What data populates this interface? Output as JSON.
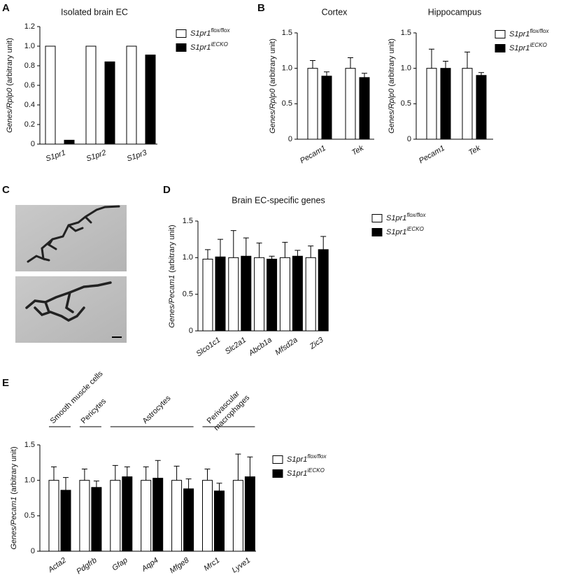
{
  "chart_data": [
    {
      "type": "bar",
      "panel": "A",
      "title": "Isolated brain EC",
      "ylabel": "Genes/Rplp0 (arbitrary unit)",
      "categories": [
        "S1pr1",
        "S1pr2",
        "S1pr3"
      ],
      "series": [
        {
          "name": "S1pr1flox/flox",
          "color": "#ffffff",
          "values": [
            1,
            1,
            1
          ]
        },
        {
          "name": "S1pr1iECKO",
          "color": "#000000",
          "values": [
            0.04,
            0.84,
            0.91
          ]
        }
      ],
      "ylim": [
        0,
        1.2
      ],
      "yticks": [
        0,
        0.2,
        0.4,
        0.6,
        0.8,
        {
          "value": 1,
          "label": "1.0"
        },
        1.2
      ]
    },
    {
      "type": "bar",
      "panel": "B",
      "title": "Cortex",
      "ylabel": "Genes/Rplp0 (arbitrary unit)",
      "categories": [
        "Pecam1",
        "Tek"
      ],
      "series": [
        {
          "color": "#ffffff",
          "values": [
            1,
            1
          ],
          "errors": [
            0.11,
            0.15
          ]
        },
        {
          "color": "#000000",
          "values": [
            0.89,
            0.87
          ],
          "errors": [
            0.06,
            0.06
          ]
        }
      ],
      "ylim": [
        0,
        1.5
      ],
      "yticks": [
        0,
        0.5,
        {
          "value": 1,
          "label": "1.0"
        },
        1.5
      ]
    },
    {
      "type": "bar",
      "title": "Hippocampus",
      "ylabel": "Genes/Rplp0 (arbitrary unit)",
      "categories": [
        "Pecam1",
        "Tek"
      ],
      "series": [
        {
          "name": "S1pr1flox/flox",
          "color": "#ffffff",
          "values": [
            1,
            1
          ],
          "errors": [
            0.27,
            0.23
          ]
        },
        {
          "name": "S1pr1iECKO",
          "color": "#000000",
          "values": [
            1,
            0.9
          ],
          "errors": [
            0.1,
            0.04
          ]
        }
      ],
      "ylim": [
        0,
        1.5
      ],
      "yticks": [
        0,
        0.5,
        {
          "value": 1,
          "label": "1.0"
        },
        1.5
      ]
    },
    {
      "type": "bar",
      "panel": "D",
      "title": "Brain EC-specific genes",
      "ylabel": "Genes/Pecam1 (arbitrary unit)",
      "categories": [
        "Slco1c1",
        "Slc2a1",
        "Abcb1a",
        "Mfsd2a",
        "Zic3"
      ],
      "series": [
        {
          "name": "S1pr1flox/flox",
          "color": "#ffffff",
          "values": [
            0.98,
            1,
            1,
            1,
            1
          ],
          "errors": [
            0.13,
            0.37,
            0.2,
            0.21,
            0.16
          ]
        },
        {
          "name": "S1pr1iECKO",
          "color": "#000000",
          "values": [
            1.01,
            1.02,
            0.98,
            1.02,
            1.11
          ],
          "errors": [
            0.24,
            0.25,
            0.04,
            0.08,
            0.18
          ]
        }
      ],
      "ylim": [
        0,
        1.5
      ],
      "yticks": [
        0,
        0.5,
        {
          "value": 1,
          "label": "1.0"
        },
        1.5
      ]
    },
    {
      "type": "bar",
      "panel": "E",
      "ylabel": "Genes/Pecam1 (arbitrary unit)",
      "categories": [
        "Acta2",
        "Pdgfrb",
        "Gfap",
        "Aqp4",
        "Mfge8",
        "Mrc1",
        "Lyve1"
      ],
      "annotations": [
        [
          "Smooth muscle cells"
        ],
        [
          "Pericytes"
        ],
        [
          "Astrocytes"
        ],
        [
          "Perivascular",
          "macrophages"
        ]
      ],
      "series": [
        {
          "name": "S1pr1flox/flox",
          "color": "#ffffff",
          "values": [
            1,
            1,
            1,
            1,
            1,
            1,
            1
          ],
          "errors": [
            0.19,
            0.16,
            0.21,
            0.19,
            0.2,
            0.16,
            0.37
          ]
        },
        {
          "name": "S1pr1iECKO",
          "color": "#000000",
          "values": [
            0.86,
            0.9,
            1.05,
            1.03,
            0.88,
            0.85,
            1.05
          ],
          "errors": [
            0.18,
            0.09,
            0.14,
            0.25,
            0.14,
            0.11,
            0.28
          ]
        }
      ],
      "ylim": [
        0,
        1.5
      ],
      "yticks": [
        0,
        0.5,
        {
          "value": 1,
          "label": "1.0"
        },
        1.5
      ]
    }
  ],
  "image_panel": {
    "label": "C"
  }
}
